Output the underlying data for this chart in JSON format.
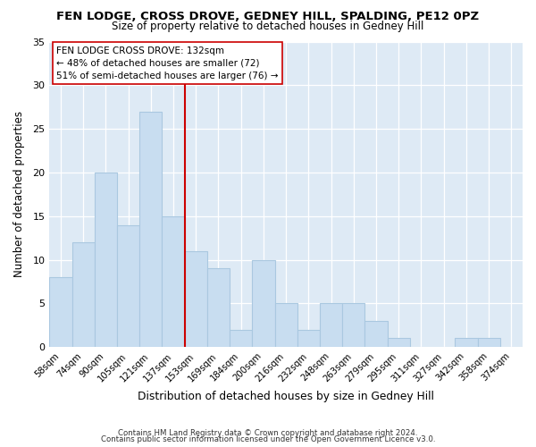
{
  "title": "FEN LODGE, CROSS DROVE, GEDNEY HILL, SPALDING, PE12 0PZ",
  "subtitle": "Size of property relative to detached houses in Gedney Hill",
  "xlabel": "Distribution of detached houses by size in Gedney Hill",
  "ylabel": "Number of detached properties",
  "bar_color": "#c8ddf0",
  "bar_edge_color": "#aac8e0",
  "marker_color": "#cc0000",
  "categories": [
    "58sqm",
    "74sqm",
    "90sqm",
    "105sqm",
    "121sqm",
    "137sqm",
    "153sqm",
    "169sqm",
    "184sqm",
    "200sqm",
    "216sqm",
    "232sqm",
    "248sqm",
    "263sqm",
    "279sqm",
    "295sqm",
    "311sqm",
    "327sqm",
    "342sqm",
    "358sqm",
    "374sqm"
  ],
  "values": [
    8,
    12,
    20,
    14,
    27,
    15,
    11,
    9,
    2,
    10,
    5,
    2,
    5,
    5,
    3,
    1,
    0,
    0,
    1,
    1,
    0
  ],
  "marker_index": 5,
  "ylim": [
    0,
    35
  ],
  "yticks": [
    0,
    5,
    10,
    15,
    20,
    25,
    30,
    35
  ],
  "annotation_title": "FEN LODGE CROSS DROVE: 132sqm",
  "annotation_line1": "← 48% of detached houses are smaller (72)",
  "annotation_line2": "51% of semi-detached houses are larger (76) →",
  "footer1": "Contains HM Land Registry data © Crown copyright and database right 2024.",
  "footer2": "Contains public sector information licensed under the Open Government Licence v3.0.",
  "bg_color": "#ffffff",
  "axes_bg": "#deeaf5",
  "annotation_box_color": "#ffffff",
  "annotation_box_edge": "#cc0000",
  "grid_color": "#b0c8e0"
}
